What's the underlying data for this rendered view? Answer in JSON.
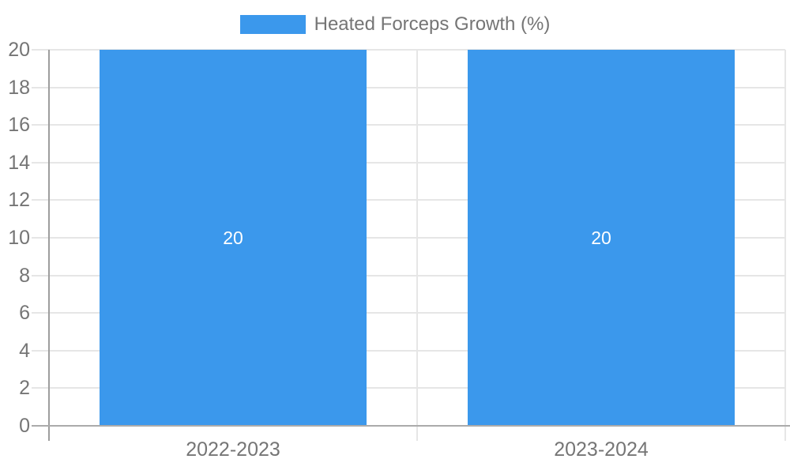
{
  "chart_data": {
    "type": "bar",
    "title": "Heated Forceps Growth (%)",
    "categories": [
      "2022-2023",
      "2023-2024"
    ],
    "series": [
      {
        "name": "Heated Forceps Growth (%)",
        "values": [
          20,
          20
        ]
      }
    ],
    "bar_value_labels": [
      "20",
      "20"
    ],
    "xlabel": "",
    "ylabel": "",
    "ylim": [
      0,
      20
    ],
    "yticks": [
      0,
      2,
      4,
      6,
      8,
      10,
      12,
      14,
      16,
      18,
      20
    ],
    "grid": true,
    "legend_position": "top",
    "colors": {
      "bar": "#3b98ec",
      "grid": "#e6e6e6",
      "axis": "#9e9e9e",
      "baseline": "#ababab",
      "text": "#757575",
      "bar_label": "#ffffff",
      "background": "#ffffff"
    }
  }
}
